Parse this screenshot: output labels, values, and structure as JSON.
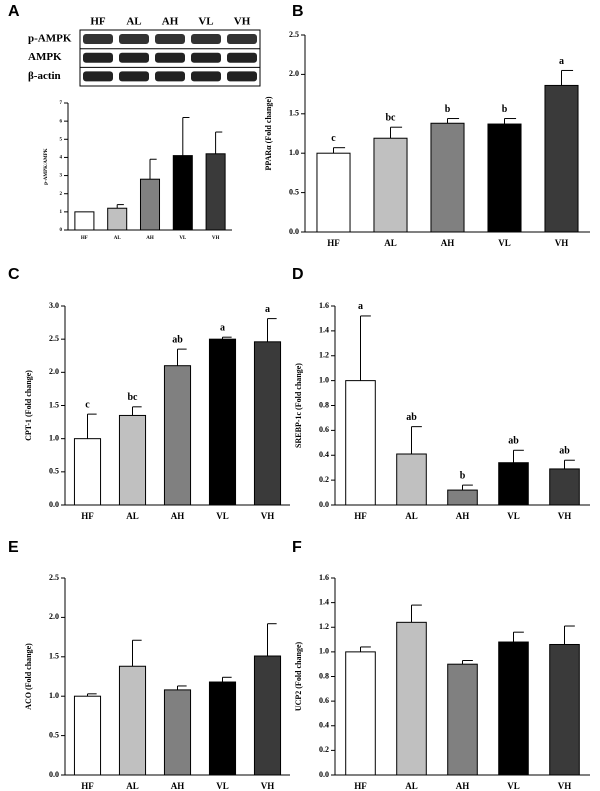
{
  "blot": {
    "lanes": [
      "HF",
      "AL",
      "AH",
      "VL",
      "VH"
    ],
    "bands": [
      "p-AMPK",
      "AMPK",
      "β-actin"
    ]
  },
  "chart_data": [
    {
      "type": "bar",
      "panel": "A",
      "ylabel": "p-AMPK/AMPK",
      "categories": [
        "HF",
        "AL",
        "AH",
        "VL",
        "VH"
      ],
      "values": [
        1.0,
        1.2,
        2.8,
        4.1,
        4.2
      ],
      "errors": [
        0,
        0.2,
        1.1,
        2.1,
        1.2
      ],
      "colors": [
        "#ffffff",
        "#c0c0c0",
        "#808080",
        "#000000",
        "#3a3a3a"
      ],
      "ylim": [
        0,
        7
      ],
      "yticks": [
        0,
        1,
        2,
        3,
        4,
        5,
        6,
        7
      ]
    },
    {
      "type": "bar",
      "panel": "B",
      "ylabel": "PPARα (Fold change)",
      "categories": [
        "HF",
        "AL",
        "AH",
        "VL",
        "VH"
      ],
      "values": [
        1.0,
        1.19,
        1.38,
        1.37,
        1.86
      ],
      "errors": [
        0.07,
        0.14,
        0.06,
        0.07,
        0.19
      ],
      "letters": [
        "c",
        "bc",
        "b",
        "b",
        "a"
      ],
      "colors": [
        "#ffffff",
        "#c0c0c0",
        "#808080",
        "#000000",
        "#3a3a3a"
      ],
      "ylim": [
        0,
        2.5
      ],
      "yticks": [
        {
          "value": 0,
          "label": "0.0"
        },
        0.5,
        {
          "value": 1,
          "label": "1.0"
        },
        1.5,
        {
          "value": 2,
          "label": "2.0"
        },
        2.5
      ]
    },
    {
      "type": "bar",
      "panel": "C",
      "ylabel": "CPT-1 (Fold change)",
      "categories": [
        "HF",
        "AL",
        "AH",
        "VL",
        "VH"
      ],
      "values": [
        1.0,
        1.35,
        2.1,
        2.5,
        2.46
      ],
      "errors": [
        0.37,
        0.13,
        0.25,
        0.03,
        0.35
      ],
      "letters": [
        "c",
        "bc",
        "ab",
        "a",
        "a"
      ],
      "colors": [
        "#ffffff",
        "#c0c0c0",
        "#808080",
        "#000000",
        "#3a3a3a"
      ],
      "ylim": [
        0,
        3
      ],
      "yticks": [
        {
          "value": 0,
          "label": "0.0"
        },
        0.5,
        {
          "value": 1,
          "label": "1.0"
        },
        1.5,
        {
          "value": 2,
          "label": "2.0"
        },
        2.5,
        {
          "value": 3,
          "label": "3.0"
        }
      ]
    },
    {
      "type": "bar",
      "panel": "D",
      "ylabel": "SREBP-1c (Fold change)",
      "categories": [
        "HF",
        "AL",
        "AH",
        "VL",
        "VH"
      ],
      "values": [
        1.0,
        0.41,
        0.12,
        0.34,
        0.29
      ],
      "errors": [
        0.52,
        0.22,
        0.04,
        0.1,
        0.07
      ],
      "letters": [
        "a",
        "ab",
        "b",
        "ab",
        "ab"
      ],
      "colors": [
        "#ffffff",
        "#c0c0c0",
        "#808080",
        "#000000",
        "#3a3a3a"
      ],
      "ylim": [
        0,
        1.6
      ],
      "yticks": [
        {
          "value": 0,
          "label": "0.0"
        },
        0.2,
        0.4,
        0.6,
        0.8,
        {
          "value": 1,
          "label": "1.0"
        },
        1.2,
        1.4,
        1.6
      ]
    },
    {
      "type": "bar",
      "panel": "E",
      "ylabel": "ACO (Fold change)",
      "categories": [
        "HF",
        "AL",
        "AH",
        "VL",
        "VH"
      ],
      "values": [
        1.0,
        1.38,
        1.08,
        1.18,
        1.51
      ],
      "errors": [
        0.03,
        0.33,
        0.05,
        0.06,
        0.41
      ],
      "colors": [
        "#ffffff",
        "#c0c0c0",
        "#808080",
        "#000000",
        "#3a3a3a"
      ],
      "ylim": [
        0,
        2.5
      ],
      "yticks": [
        {
          "value": 0,
          "label": "0.0"
        },
        0.5,
        {
          "value": 1,
          "label": "1.0"
        },
        1.5,
        {
          "value": 2,
          "label": "2.0"
        },
        2.5
      ]
    },
    {
      "type": "bar",
      "panel": "F",
      "ylabel": "UCP2 (Fold change)",
      "categories": [
        "HF",
        "AL",
        "AH",
        "VL",
        "VH"
      ],
      "values": [
        1.0,
        1.24,
        0.9,
        1.08,
        1.06
      ],
      "errors": [
        0.04,
        0.14,
        0.03,
        0.08,
        0.15
      ],
      "colors": [
        "#ffffff",
        "#c0c0c0",
        "#808080",
        "#000000",
        "#3a3a3a"
      ],
      "ylim": [
        0,
        1.6
      ],
      "yticks": [
        {
          "value": 0,
          "label": "0.0"
        },
        0.2,
        0.4,
        0.6,
        0.8,
        {
          "value": 1,
          "label": "1.0"
        },
        1.2,
        1.4,
        1.6
      ]
    }
  ]
}
